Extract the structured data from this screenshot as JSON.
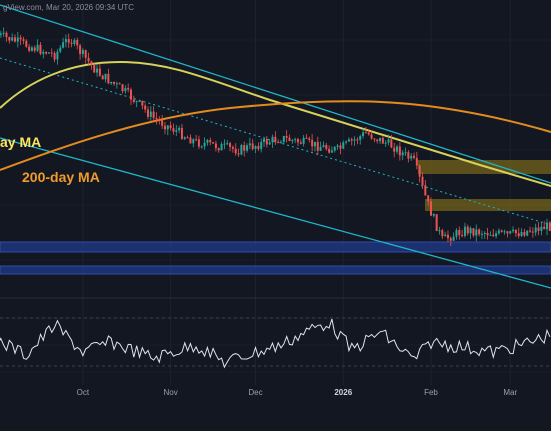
{
  "header": {
    "source_text": "gView.com, Mar 20, 2026 09:34 UTC"
  },
  "colors": {
    "background": "#131722",
    "candle_up": "#26a69a",
    "candle_down": "#ef5350",
    "ma_short": "#d7d25a",
    "ma_long": "#e38b1d",
    "channel_line": "#1fb5c9",
    "support_zone": "#1e3a8a",
    "resistance_zone": "#7a6a1a",
    "rsi_line": "#dfe3ea"
  },
  "chart_data": [
    {
      "type": "candlestick",
      "panel": "price",
      "annotations": [
        {
          "id": "ma_short_label",
          "text": "ay MA",
          "color": "#ffe45e"
        },
        {
          "id": "ma_long_label",
          "text": "200-day MA",
          "color": "#f09c2a"
        }
      ],
      "x_ticks": [
        {
          "label": "Oct",
          "day": 30,
          "bold": false
        },
        {
          "label": "Nov",
          "day": 61,
          "bold": false
        },
        {
          "label": "Dec",
          "day": 91,
          "bold": false
        },
        {
          "label": "2026",
          "day": 122,
          "bold": true
        },
        {
          "label": "Feb",
          "day": 153,
          "bold": false
        },
        {
          "label": "Mar",
          "day": 181,
          "bold": false
        }
      ],
      "grid": true
    },
    {
      "type": "line",
      "panel": "rsi",
      "grid": true
    }
  ]
}
